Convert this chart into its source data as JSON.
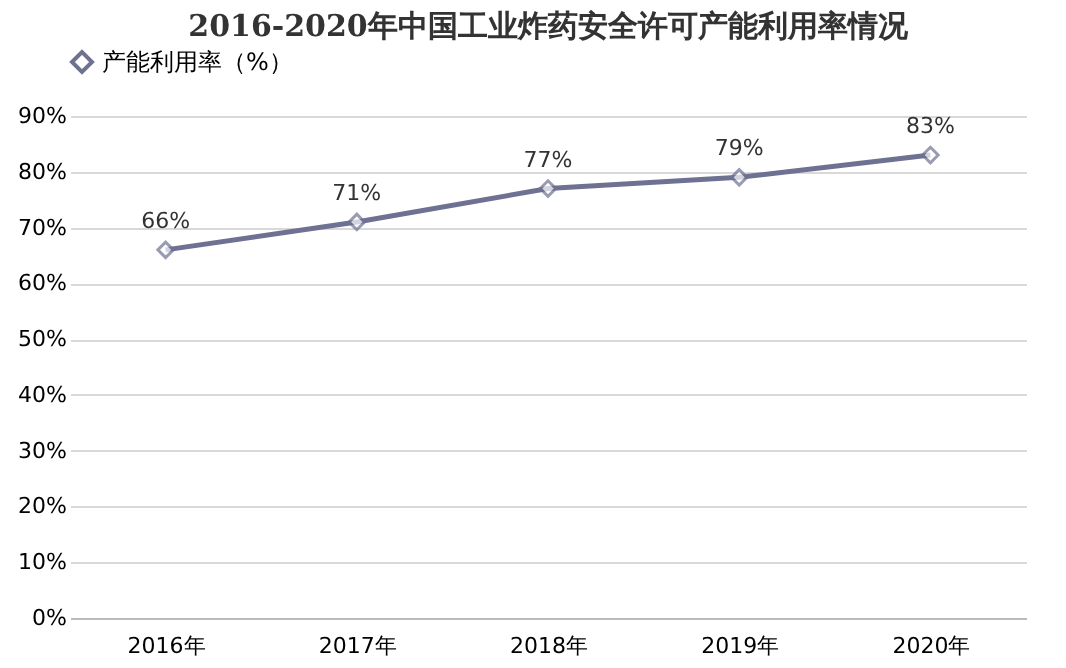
{
  "chart_data": {
    "type": "line",
    "title": "2016-2020年中国工业炸药安全许可产能利用率情况",
    "categories": [
      "2016年",
      "2017年",
      "2018年",
      "2019年",
      "2020年"
    ],
    "series": [
      {
        "name": "产能利用率（%）",
        "color": "#6e7191",
        "values": [
          66,
          71,
          77,
          79,
          83
        ],
        "value_labels": [
          "66%",
          "71%",
          "77%",
          "79%",
          "83%"
        ]
      }
    ],
    "ylim": [
      0,
      90
    ],
    "yticks": [
      {
        "value": 0,
        "label": "0%"
      },
      {
        "value": 10,
        "label": "10%"
      },
      {
        "value": 20,
        "label": "20%"
      },
      {
        "value": 30,
        "label": "30%"
      },
      {
        "value": 40,
        "label": "40%"
      },
      {
        "value": 50,
        "label": "50%"
      },
      {
        "value": 60,
        "label": "60%"
      },
      {
        "value": 70,
        "label": "70%"
      },
      {
        "value": 80,
        "label": "80%"
      },
      {
        "value": 90,
        "label": "90%"
      }
    ],
    "grid": "y",
    "legend": "top",
    "marker": "diamond",
    "line_style": "solid"
  }
}
